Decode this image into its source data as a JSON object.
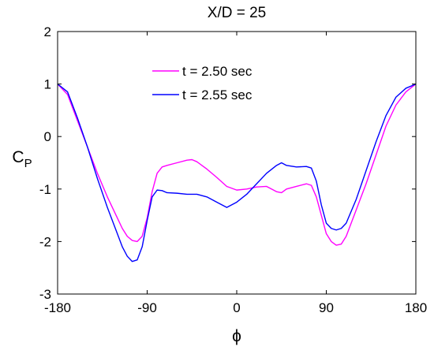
{
  "chart_data": {
    "type": "line",
    "title": "X/D = 25",
    "xlabel": "ϕ",
    "ylabel": "C",
    "ylabel_subscript": "P",
    "xlim": [
      -180,
      180
    ],
    "ylim": [
      -3,
      2
    ],
    "xticks": [
      -180,
      -90,
      0,
      90,
      180
    ],
    "yticks": [
      -3,
      -2,
      -1,
      0,
      1,
      2
    ],
    "grid": false,
    "legend_position": "top-center",
    "series": [
      {
        "name": "t = 2.50 sec",
        "color": "#ff00ff",
        "x": [
          -180,
          -170,
          -160,
          -150,
          -140,
          -130,
          -120,
          -115,
          -110,
          -105,
          -100,
          -95,
          -90,
          -85,
          -80,
          -75,
          -70,
          -60,
          -50,
          -45,
          -40,
          -30,
          -20,
          -10,
          0,
          10,
          20,
          30,
          40,
          45,
          50,
          60,
          70,
          75,
          80,
          85,
          90,
          95,
          100,
          105,
          110,
          120,
          130,
          140,
          150,
          160,
          170,
          180
        ],
        "y": [
          1.0,
          0.8,
          0.3,
          -0.2,
          -0.7,
          -1.15,
          -1.55,
          -1.75,
          -1.9,
          -1.98,
          -2.0,
          -1.9,
          -1.55,
          -1.05,
          -0.7,
          -0.58,
          -0.55,
          -0.5,
          -0.45,
          -0.44,
          -0.48,
          -0.62,
          -0.78,
          -0.95,
          -1.02,
          -1.0,
          -0.96,
          -0.95,
          -1.05,
          -1.07,
          -1.0,
          -0.95,
          -0.9,
          -0.93,
          -1.15,
          -1.5,
          -1.85,
          -2.0,
          -2.07,
          -2.05,
          -1.9,
          -1.4,
          -0.9,
          -0.35,
          0.2,
          0.6,
          0.85,
          1.0
        ]
      },
      {
        "name": "t = 2.55 sec",
        "color": "#0000ff",
        "x": [
          -180,
          -170,
          -160,
          -150,
          -140,
          -130,
          -120,
          -115,
          -110,
          -105,
          -100,
          -95,
          -90,
          -85,
          -80,
          -75,
          -70,
          -60,
          -50,
          -40,
          -30,
          -20,
          -10,
          0,
          10,
          20,
          30,
          40,
          45,
          50,
          60,
          70,
          75,
          80,
          85,
          90,
          95,
          100,
          105,
          110,
          120,
          130,
          140,
          150,
          160,
          170,
          180
        ],
        "y": [
          1.0,
          0.85,
          0.35,
          -0.2,
          -0.8,
          -1.35,
          -1.85,
          -2.1,
          -2.28,
          -2.38,
          -2.35,
          -2.1,
          -1.6,
          -1.15,
          -1.02,
          -1.03,
          -1.07,
          -1.08,
          -1.1,
          -1.1,
          -1.15,
          -1.25,
          -1.35,
          -1.25,
          -1.1,
          -0.9,
          -0.7,
          -0.55,
          -0.5,
          -0.55,
          -0.58,
          -0.57,
          -0.6,
          -0.85,
          -1.3,
          -1.65,
          -1.75,
          -1.78,
          -1.75,
          -1.65,
          -1.2,
          -0.65,
          -0.1,
          0.4,
          0.75,
          0.92,
          1.0
        ]
      }
    ]
  }
}
